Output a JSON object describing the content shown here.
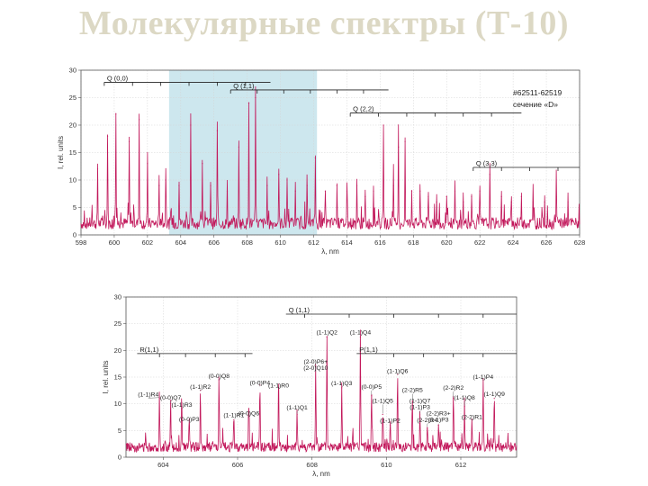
{
  "page": {
    "title": "Молекулярные спектры (Т-10)"
  },
  "chart_data": [
    {
      "type": "line",
      "xlabel": "λ, nm",
      "ylabel": "I, rel. units",
      "xlim": [
        598,
        628
      ],
      "ylim": [
        0,
        30
      ],
      "xticks": [
        598,
        600,
        602,
        604,
        606,
        608,
        610,
        612,
        614,
        616,
        618,
        620,
        622,
        624,
        626,
        628
      ],
      "yticks": [
        0,
        5,
        10,
        15,
        20,
        25,
        30
      ],
      "grid": true,
      "shaded_region": [
        603.3,
        612.2
      ],
      "annotation": [
        "#62511-62519",
        "сечение «D»"
      ],
      "branches": [
        {
          "label": "Q (0,0)",
          "y": 27.8,
          "x_start": 599.4,
          "x_end": 609.4,
          "ticks": [
            599.4,
            601.1,
            602.8,
            604.5,
            606.2,
            607.9
          ]
        },
        {
          "label": "Q (1,1)",
          "y": 26.4,
          "x_start": 607.0,
          "x_end": 616.5,
          "ticks": [
            607.0,
            608.6,
            610.2,
            611.8,
            613.4,
            615.0
          ]
        },
        {
          "label": "Q (2,2)",
          "y": 22.2,
          "x_start": 614.2,
          "x_end": 624.5,
          "ticks": [
            614.2,
            615.9,
            617.6,
            619.3,
            621.0,
            622.7
          ]
        },
        {
          "label": "Q (3,3)",
          "y": 12.3,
          "x_start": 621.6,
          "x_end": 628.0,
          "ticks": [
            621.6,
            623.3,
            625.0,
            626.7
          ]
        }
      ],
      "peaks": [
        {
          "x": 599.0,
          "y": 12
        },
        {
          "x": 599.6,
          "y": 18
        },
        {
          "x": 600.1,
          "y": 22
        },
        {
          "x": 600.9,
          "y": 17
        },
        {
          "x": 601.5,
          "y": 21
        },
        {
          "x": 602.0,
          "y": 13
        },
        {
          "x": 602.7,
          "y": 9
        },
        {
          "x": 603.1,
          "y": 10
        },
        {
          "x": 603.9,
          "y": 9
        },
        {
          "x": 604.6,
          "y": 20
        },
        {
          "x": 605.3,
          "y": 13
        },
        {
          "x": 605.8,
          "y": 9
        },
        {
          "x": 606.2,
          "y": 19
        },
        {
          "x": 606.8,
          "y": 8
        },
        {
          "x": 607.5,
          "y": 16
        },
        {
          "x": 608.1,
          "y": 24
        },
        {
          "x": 608.5,
          "y": 25
        },
        {
          "x": 609.2,
          "y": 9
        },
        {
          "x": 609.9,
          "y": 11
        },
        {
          "x": 610.4,
          "y": 10
        },
        {
          "x": 610.9,
          "y": 8
        },
        {
          "x": 611.6,
          "y": 9
        },
        {
          "x": 612.1,
          "y": 14
        },
        {
          "x": 612.7,
          "y": 8
        },
        {
          "x": 613.4,
          "y": 9
        },
        {
          "x": 614.0,
          "y": 8
        },
        {
          "x": 614.6,
          "y": 9
        },
        {
          "x": 615.1,
          "y": 7
        },
        {
          "x": 615.6,
          "y": 8
        },
        {
          "x": 616.2,
          "y": 20
        },
        {
          "x": 616.8,
          "y": 9
        },
        {
          "x": 617.1,
          "y": 16
        },
        {
          "x": 617.5,
          "y": 17
        },
        {
          "x": 617.9,
          "y": 8
        },
        {
          "x": 618.4,
          "y": 8
        },
        {
          "x": 618.9,
          "y": 7
        },
        {
          "x": 619.4,
          "y": 6
        },
        {
          "x": 620.0,
          "y": 7
        },
        {
          "x": 620.5,
          "y": 8
        },
        {
          "x": 621.0,
          "y": 6
        },
        {
          "x": 621.5,
          "y": 7
        },
        {
          "x": 622.0,
          "y": 8
        },
        {
          "x": 622.6,
          "y": 11
        },
        {
          "x": 623.3,
          "y": 7
        },
        {
          "x": 623.9,
          "y": 6
        },
        {
          "x": 624.5,
          "y": 7
        },
        {
          "x": 625.2,
          "y": 6
        },
        {
          "x": 625.9,
          "y": 6
        },
        {
          "x": 626.6,
          "y": 7
        },
        {
          "x": 627.3,
          "y": 6
        }
      ]
    },
    {
      "type": "line",
      "xlabel": "λ, nm",
      "ylabel": "I, rel. units",
      "xlim": [
        603.0,
        613.5
      ],
      "ylim": [
        0,
        30
      ],
      "xticks": [
        604,
        606,
        608,
        610,
        612
      ],
      "yticks": [
        0,
        5,
        10,
        15,
        20,
        25,
        30
      ],
      "grid": true,
      "branches": [
        {
          "label": "Q (1,1)",
          "y": 26.8,
          "x_start": 607.3,
          "x_end": 613.5,
          "ticks": [
            607.8,
            609.0,
            610.2,
            611.4,
            612.6
          ]
        },
        {
          "label": "R(1,1)",
          "y": 19.4,
          "x_start": 603.3,
          "x_end": 606.4,
          "ticks": [
            603.9,
            604.6,
            605.4,
            606.2
          ]
        },
        {
          "label": "P(1,1)",
          "y": 19.4,
          "x_start": 609.2,
          "x_end": 613.5,
          "ticks": [
            610.2,
            611.0,
            611.8,
            612.6
          ]
        }
      ],
      "peaks": [
        {
          "x": 603.9,
          "y": 11,
          "label": "(1-1)R4",
          "label_y": 11.4,
          "label_x_offset": -0.3
        },
        {
          "x": 604.2,
          "y": 10,
          "label": "(0-0)Q7",
          "label_y": 10.8,
          "label_x_offset": 0.0
        },
        {
          "x": 604.5,
          "y": 9,
          "label": "(1-1)R3",
          "label_y": 9.4,
          "label_x_offset": 0.0
        },
        {
          "x": 604.7,
          "y": 7,
          "label": "(0-0)P3",
          "label_y": 6.7,
          "label_x_offset": 0.0
        },
        {
          "x": 605.0,
          "y": 12.5,
          "label": "(1-1)R2",
          "label_y": 12.8,
          "label_x_offset": 0.0
        },
        {
          "x": 605.5,
          "y": 14.5,
          "label": "(0-0)Q8",
          "label_y": 14.8,
          "label_x_offset": 0.0
        },
        {
          "x": 605.9,
          "y": 7,
          "label": "(1-1)R1",
          "label_y": 7.5,
          "label_x_offset": 0.0
        },
        {
          "x": 606.3,
          "y": 8,
          "label": "(0-0)Q6",
          "label_y": 7.8,
          "label_x_offset": 0.0
        },
        {
          "x": 606.6,
          "y": 13.5,
          "label": "(0-0)P4",
          "label_y": 13.6,
          "label_x_offset": 0.0
        },
        {
          "x": 607.1,
          "y": 13,
          "label": "(1-1)R0",
          "label_y": 13.1,
          "label_x_offset": 0.0
        },
        {
          "x": 607.6,
          "y": 8,
          "label": "(1-1)Q1",
          "label_y": 8.9,
          "label_x_offset": 0.0
        },
        {
          "x": 608.1,
          "y": 17,
          "label": "(2-0)P6+ (2-0)Q10",
          "label_y": 17.5,
          "label_x_offset": 0.0
        },
        {
          "x": 608.4,
          "y": 22.5,
          "label": "(1-1)Q2",
          "label_y": 23.0,
          "label_x_offset": 0.0
        },
        {
          "x": 608.8,
          "y": 13,
          "label": "(1-1)Q3",
          "label_y": 13.5,
          "label_x_offset": 0.0
        },
        {
          "x": 609.3,
          "y": 22.5,
          "label": "(1-1)Q4",
          "label_y": 23.0,
          "label_x_offset": 0.0
        },
        {
          "x": 609.6,
          "y": 11.5,
          "label": "(0-0)P5",
          "label_y": 12.8,
          "label_x_offset": 0.0
        },
        {
          "x": 609.9,
          "y": 8,
          "label": "(1-1)Q5",
          "label_y": 10.2,
          "label_x_offset": 0.0
        },
        {
          "x": 610.1,
          "y": 6,
          "label": "(1-1)P2",
          "label_y": 6.5,
          "label_x_offset": 0.0
        },
        {
          "x": 610.3,
          "y": 15.5,
          "label": "(1-1)Q6",
          "label_y": 15.8,
          "label_x_offset": 0.0
        },
        {
          "x": 610.7,
          "y": 10.5,
          "label": "(2-2)R5",
          "label_y": 12.2,
          "label_x_offset": 0.0
        },
        {
          "x": 610.9,
          "y": 8,
          "label": "(1-1)Q7 (1-1)P3",
          "label_y": 10.2,
          "label_x_offset": 0.0
        },
        {
          "x": 611.1,
          "y": 5.5,
          "label": "(2-2)R4",
          "label_y": 6.6,
          "label_x_offset": 0.0
        },
        {
          "x": 611.4,
          "y": 6,
          "label": "(2-2)R3+ (1-1)P3",
          "label_y": 7.8,
          "label_x_offset": 0.0
        },
        {
          "x": 611.8,
          "y": 11,
          "label": "(2-2)R2",
          "label_y": 12.6,
          "label_x_offset": 0.0
        },
        {
          "x": 612.1,
          "y": 9.5,
          "label": "(1-1)Q8",
          "label_y": 10.8,
          "label_x_offset": 0.0
        },
        {
          "x": 612.3,
          "y": 7,
          "label": "(2-2)R1",
          "label_y": 7.2,
          "label_x_offset": 0.0
        },
        {
          "x": 612.6,
          "y": 14.5,
          "label": "(1-1)P4",
          "label_y": 14.7,
          "label_x_offset": 0.0
        },
        {
          "x": 612.9,
          "y": 11,
          "label": "(1-1)Q9",
          "label_y": 11.5,
          "label_x_offset": 0.0
        }
      ]
    }
  ]
}
